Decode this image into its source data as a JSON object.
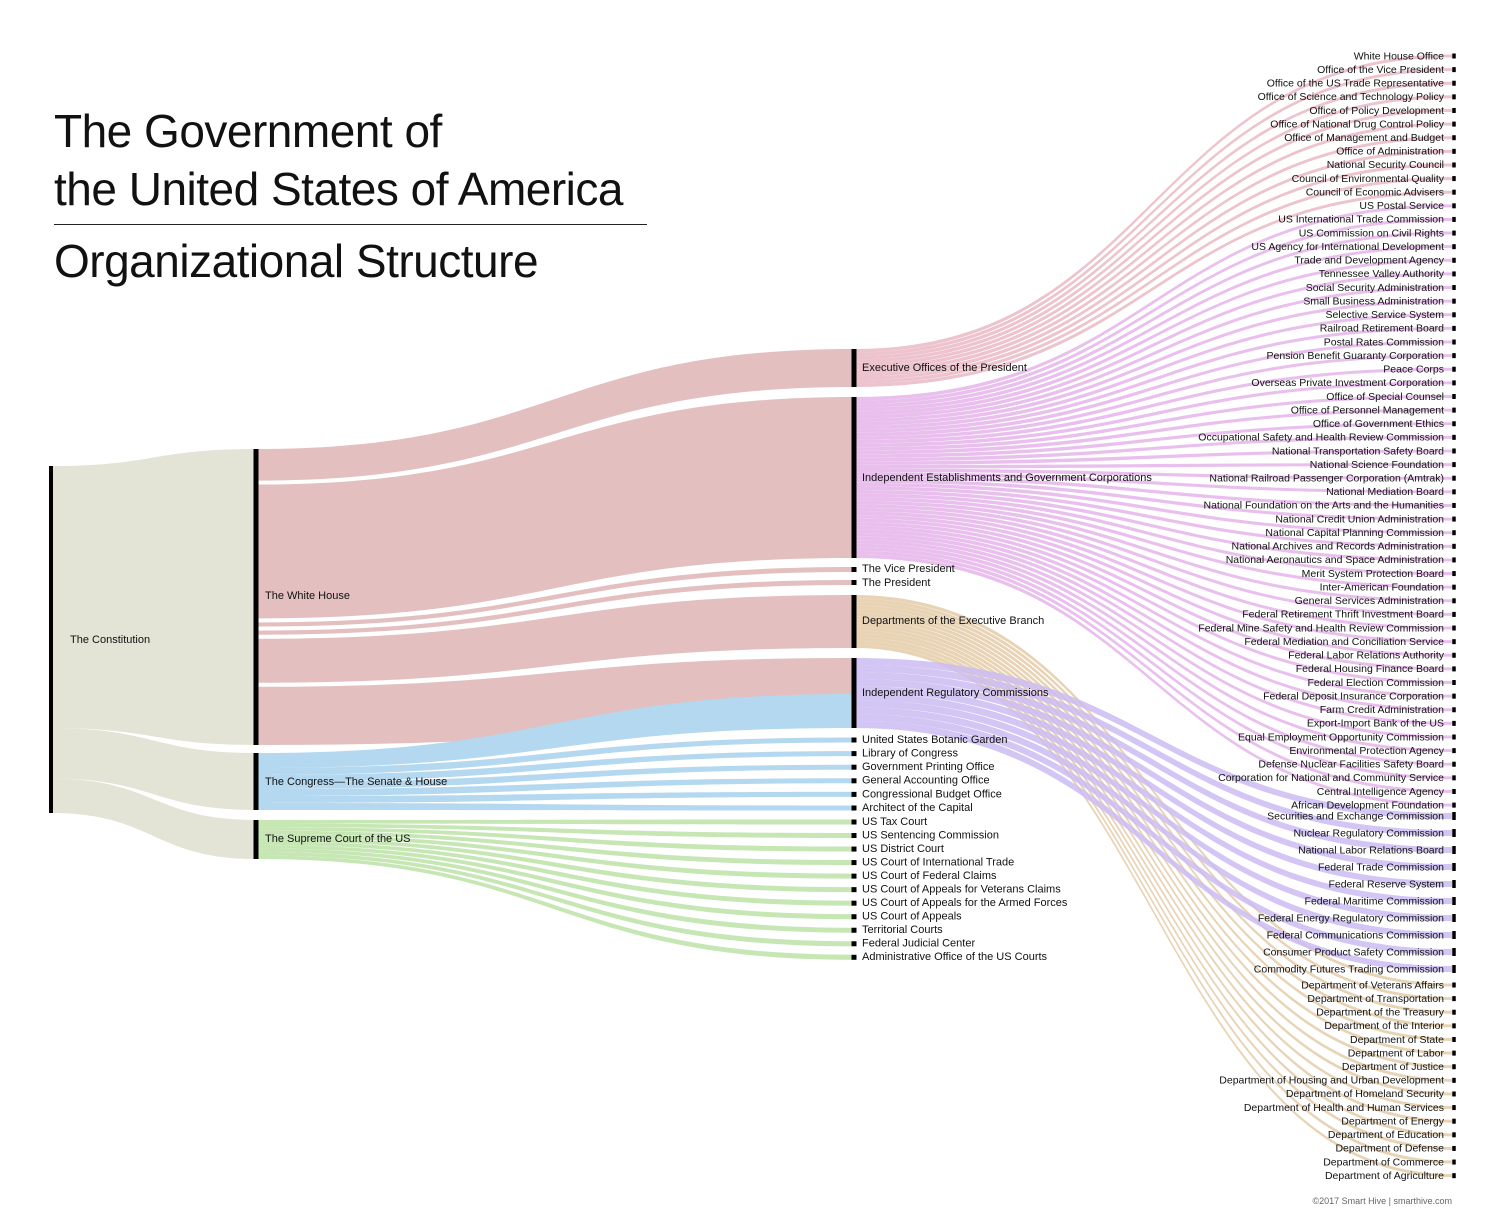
{
  "title": {
    "line1": "The Government of",
    "line2": "the United States of America",
    "line3": "Organizational Structure"
  },
  "credit": "©2017 Smart Hive  |  smarthive.com",
  "colors": {
    "constitution": "#e3e3d6",
    "white_house": "#e3bfbf",
    "congress": "#b3d8f0",
    "court": "#c6e6b4",
    "exec_offices": "#eab9c4",
    "independent": "#e5b5ea",
    "departments": "#e4cba8",
    "regulatory": "#cbbbf2"
  },
  "chart_data": {
    "type": "sankey",
    "nodes": {
      "root": "The Constitution",
      "branches": [
        "The White House",
        "The Congress—The Senate & House",
        "The Supreme Court of the US"
      ],
      "white_house_children": [
        "Executive Offices of the President",
        "Independent Establishments and Government Corporations",
        "The Vice President",
        "The President",
        "Departments of the Executive Branch",
        "Independent Regulatory Commissions"
      ],
      "congress_children": [
        "United States Botanic Garden",
        "Library of Congress",
        "Government Printing Office",
        "General Accounting Office",
        "Congressional Budget Office",
        "Architect of the Capital"
      ],
      "court_children": [
        "US Tax Court",
        "US Sentencing Commission",
        "US District Court",
        "US Court of International Trade",
        "US Court of Federal Claims",
        "US Court of Appeals for Veterans Claims",
        "US Court of Appeals for the Armed Forces",
        "US Court of Appeals",
        "Territorial Courts",
        "Federal Judicial Center",
        "Administrative Office of the US Courts"
      ],
      "executive_offices": [
        "White House Office",
        "Office of the Vice President",
        "Office of the US Trade Representative",
        "Office of Science and Technology Policy",
        "Office of Policy Development",
        "Office of National Drug Control Policy",
        "Office of Management and Budget",
        "Office of Administration",
        "National Security Council",
        "Council of Environmental Quality",
        "Council of Economic Advisers"
      ],
      "independent_establishments": [
        "US Postal Service",
        "US International Trade Commission",
        "US Commission on Civil Rights",
        "US Agency for International Development",
        "Trade and Development Agency",
        "Tennessee Valley Authority",
        "Social Security Administration",
        "Small Business Administration",
        "Selective Service System",
        "Railroad Retirement Board",
        "Postal Rates Commission",
        "Pension Benefit Guaranty Corporation",
        "Peace Corps",
        "Overseas Private Investment Corporation",
        "Office of Special Counsel",
        "Office of Personnel Management",
        "Office of Government Ethics",
        "Occupational Safety and Health Review Commission",
        "National Transportation Safety Board",
        "National Science Foundation",
        "National Railroad Passenger Corporation (Amtrak)",
        "National Mediation Board",
        "National Foundation on the Arts and the Humanities",
        "National Credit Union Administration",
        "National Capital Planning Commission",
        "National Archives and Records Administration",
        "National Aeronautics and Space Administration",
        "Merit System Protection Board",
        "Inter-American Foundation",
        "General Services Administration",
        "Federal Retirement Thrift Investment Board",
        "Federal Mine Safety and Health Review Commission",
        "Federal Mediation and Conciliation Service",
        "Federal Labor Relations Authority",
        "Federal Housing Finance Board",
        "Federal Election Commission",
        "Federal Deposit Insurance Corporation",
        "Farm Credit Administration",
        "Export-Import Bank of the US",
        "Equal Employment Opportunity Commission",
        "Environmental Protection Agency",
        "Defense Nuclear Facilities Safety Board",
        "Corporation for National and Community Service",
        "Central Intelligence Agency",
        "African Development Foundation"
      ],
      "regulatory_commissions": [
        "Securities and Exchange Commission",
        "Nuclear Regulatory Commission",
        "National Labor Relations Board",
        "Federal Trade Commission",
        "Federal Reserve System",
        "Federal Maritime Commission",
        "Federal Energy Regulatory Commission",
        "Federal Communications Commission",
        "Consumer Product Safety Commission",
        "Commodity Futures Trading Commission"
      ],
      "departments": [
        "Department of Veterans Affairs",
        "Department of Transportation",
        "Department of the Treasury",
        "Department of the Interior",
        "Department of State",
        "Department of Labor",
        "Department of Justice",
        "Department of Housing and Urban Development",
        "Department of Homeland Security",
        "Department of Health and Human Services",
        "Department of Energy",
        "Department of Education",
        "Department of Defense",
        "Department of Commerce",
        "Department of Agriculture"
      ]
    }
  }
}
